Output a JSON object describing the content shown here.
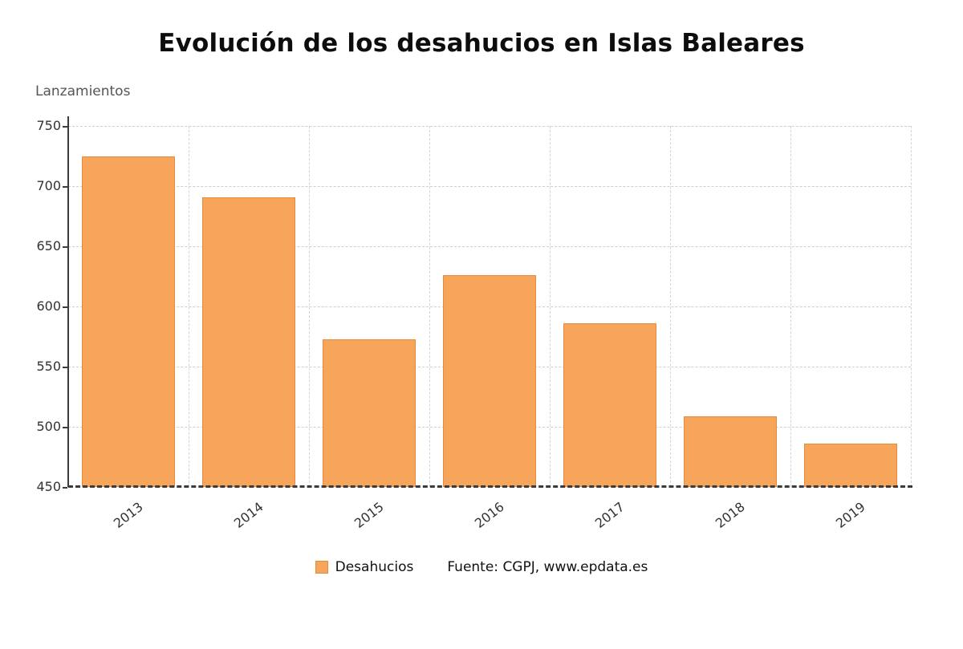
{
  "chart_data": {
    "type": "bar",
    "title": "Evolución de los desahucios en Islas Baleares",
    "ylabel": "Lanzamientos",
    "categories": [
      "2013",
      "2014",
      "2015",
      "2016",
      "2017",
      "2018",
      "2019"
    ],
    "series": [
      {
        "name": "Desahucios",
        "values": [
          725,
          691,
          573,
          626,
          586,
          509,
          486
        ]
      }
    ],
    "ylim": [
      450,
      750
    ],
    "ytick_step": 50,
    "grid": true,
    "legend_position": "bottom",
    "bar_color": "#F8A55C",
    "bar_border_color": "#E8893C",
    "source": "Fuente: CGPJ, www.epdata.es"
  }
}
